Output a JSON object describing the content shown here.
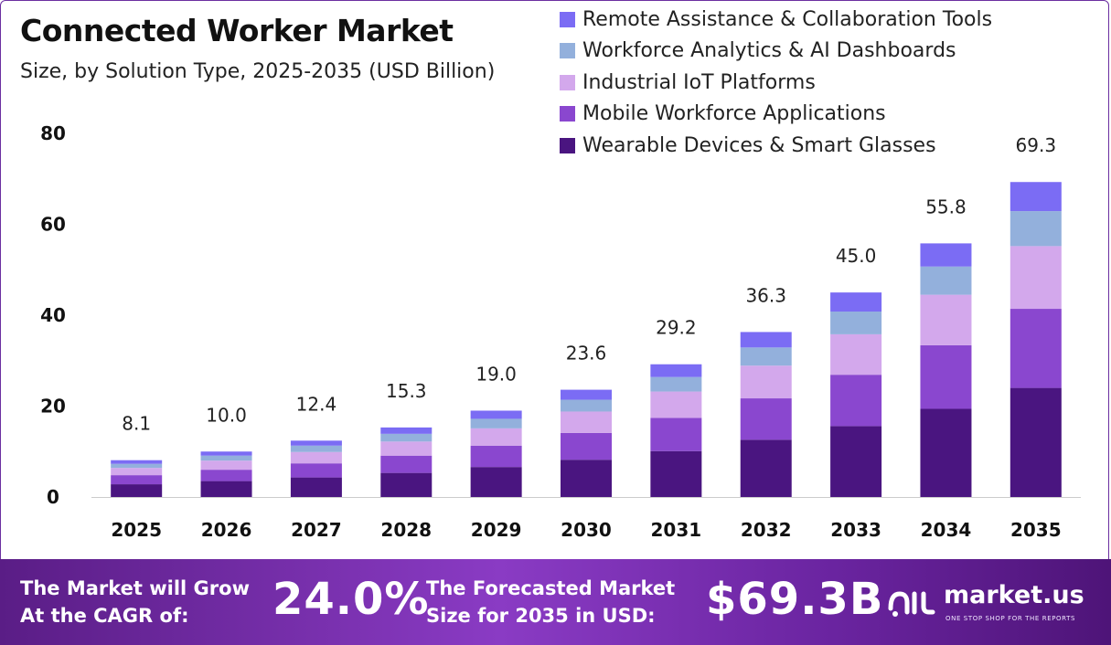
{
  "header": {
    "title": "Connected Worker Market",
    "subtitle": "Size, by Solution Type, 2025-2035 (USD Billion)"
  },
  "chart_data": {
    "type": "bar",
    "stacked": true,
    "title": "Connected Worker Market",
    "subtitle": "Size, by Solution Type, 2025-2035 (USD Billion)",
    "xlabel": "",
    "ylabel": "",
    "ylim": [
      0,
      80
    ],
    "yticks": [
      0,
      20,
      40,
      60,
      80
    ],
    "grid": false,
    "legend_position": "top-right",
    "categories": [
      "2025",
      "2026",
      "2027",
      "2028",
      "2029",
      "2030",
      "2031",
      "2032",
      "2033",
      "2034",
      "2035"
    ],
    "totals": [
      8.1,
      10.0,
      12.4,
      15.3,
      19.0,
      23.6,
      29.2,
      36.3,
      45.0,
      55.8,
      69.3
    ],
    "total_labels": [
      "8.1",
      "10.0",
      "12.4",
      "15.3",
      "19.0",
      "23.6",
      "29.2",
      "36.3",
      "45.0",
      "55.8",
      "69.3"
    ],
    "series": [
      {
        "name": "Wearable Devices & Smart Glasses",
        "color": "#4a1580",
        "values": [
          2.8,
          3.5,
          4.3,
          5.3,
          6.6,
          8.2,
          10.1,
          12.6,
          15.6,
          19.4,
          24.0
        ]
      },
      {
        "name": "Mobile Workforce Applications",
        "color": "#8a47cf",
        "values": [
          2.0,
          2.5,
          3.1,
          3.8,
          4.7,
          5.9,
          7.3,
          9.1,
          11.3,
          14.0,
          17.4
        ]
      },
      {
        "name": "Industrial IoT Platforms",
        "color": "#d3a8ec",
        "values": [
          1.6,
          2.0,
          2.5,
          3.1,
          3.8,
          4.7,
          5.8,
          7.2,
          8.9,
          11.1,
          13.8
        ]
      },
      {
        "name": "Workforce Analytics & AI Dashboards",
        "color": "#93b0dc",
        "values": [
          0.9,
          1.1,
          1.4,
          1.7,
          2.1,
          2.6,
          3.2,
          4.0,
          5.0,
          6.2,
          7.7
        ]
      },
      {
        "name": "Remote Assistance & Collaboration Tools",
        "color": "#7b6cf4",
        "values": [
          0.8,
          0.9,
          1.1,
          1.4,
          1.8,
          2.2,
          2.8,
          3.4,
          4.2,
          5.1,
          6.4
        ]
      }
    ]
  },
  "legend": {
    "items": [
      {
        "label": "Remote Assistance & Collaboration Tools",
        "color": "#7b6cf4"
      },
      {
        "label": "Workforce Analytics & AI Dashboards",
        "color": "#93b0dc"
      },
      {
        "label": "Industrial IoT Platforms",
        "color": "#d3a8ec"
      },
      {
        "label": "Mobile Workforce Applications",
        "color": "#8a47cf"
      },
      {
        "label": "Wearable Devices & Smart Glasses",
        "color": "#4a1580"
      }
    ]
  },
  "footer": {
    "cagr_text_line1": "The Market will Grow",
    "cagr_text_line2": "At the CAGR of:",
    "cagr_value": "24.0%",
    "forecast_text_line1": "The Forecasted Market",
    "forecast_text_line2": "Size for 2035 in USD:",
    "forecast_value": "$69.3B",
    "brand_name": "market.us",
    "brand_tagline": "ONE STOP SHOP FOR THE REPORTS"
  },
  "colors": {
    "footer_start": "#5a1d86",
    "footer_end": "#4e1478",
    "axis": "#cccccc"
  }
}
